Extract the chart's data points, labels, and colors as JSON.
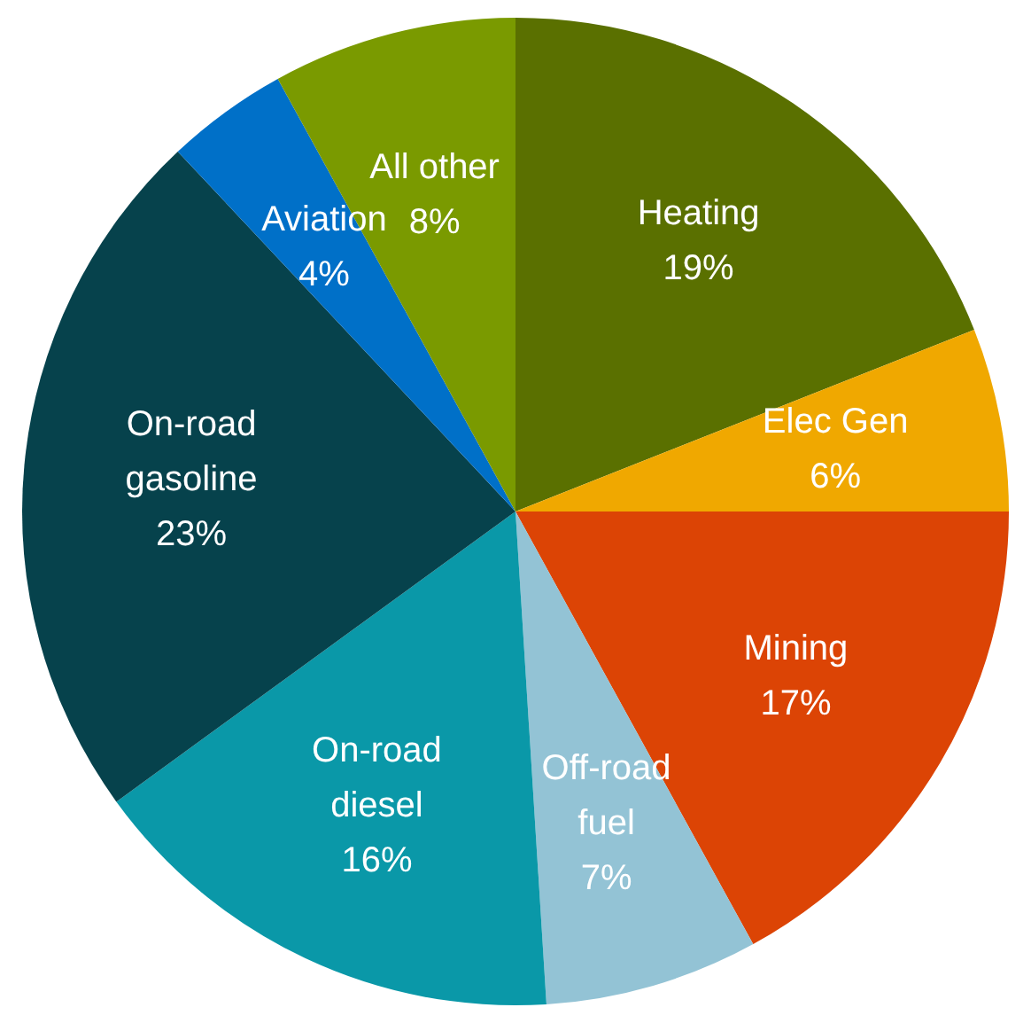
{
  "chart_data": {
    "type": "pie",
    "categories": [
      "Heating",
      "Elec Gen",
      "Mining",
      "Off-road fuel",
      "On-road diesel",
      "On-road gasoline",
      "Aviation",
      "All other"
    ],
    "values": [
      19,
      6,
      17,
      7,
      16,
      23,
      4,
      8
    ],
    "colors": [
      "#5a7000",
      "#f0a800",
      "#dc4405",
      "#93c3d5",
      "#0a98a8",
      "#06424c",
      "#0070c8",
      "#7a9a00"
    ],
    "value_labels": [
      "19%",
      "6%",
      "17%",
      "7%",
      "16%",
      "23%",
      "4%",
      "8%"
    ],
    "legend": false
  }
}
